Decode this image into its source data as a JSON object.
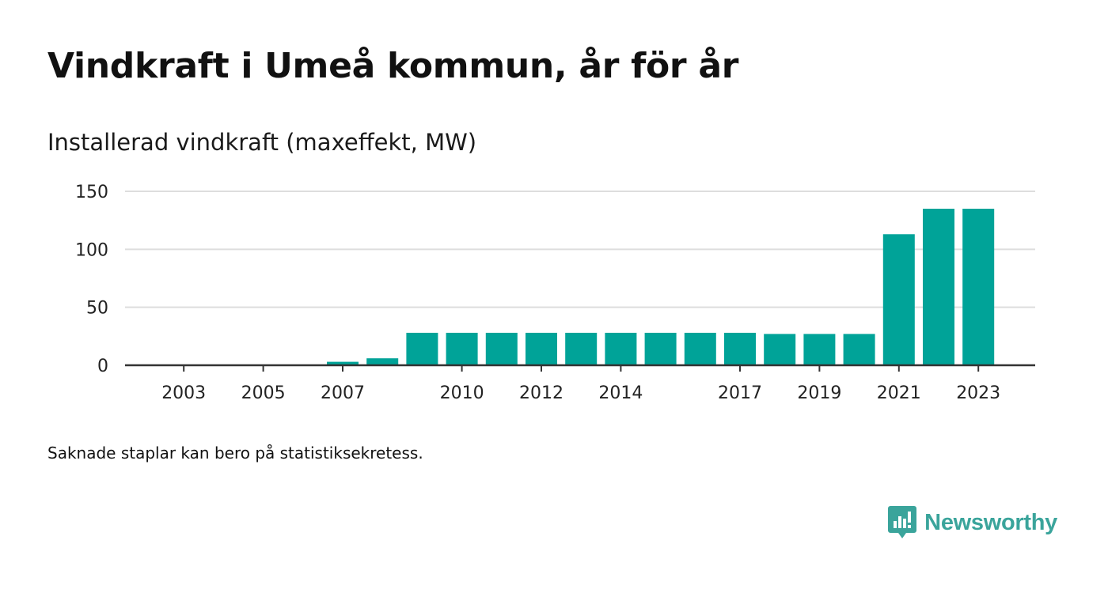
{
  "title": "Vindkraft i Umeå kommun, år för år",
  "subtitle": "Installerad vindkraft (maxeffekt, MW)",
  "note": "Saknade staplar kan bero på statistiksekretess.",
  "brand": {
    "name": "Newsworthy",
    "color": "#3aa49b",
    "icon": "newsworthy-logo-icon"
  },
  "colors": {
    "bar": "#00a398",
    "grid": "#dddddd",
    "axis": "#333333"
  },
  "chart_data": {
    "type": "bar",
    "title": "Vindkraft i Umeå kommun, år för år",
    "ylabel": "Installerad vindkraft (maxeffekt, MW)",
    "xlabel": "",
    "x": [
      2002,
      2003,
      2004,
      2005,
      2006,
      2007,
      2008,
      2009,
      2010,
      2011,
      2012,
      2013,
      2014,
      2015,
      2016,
      2017,
      2018,
      2019,
      2020,
      2021,
      2022,
      2023
    ],
    "values": [
      null,
      null,
      null,
      null,
      null,
      3,
      6,
      28,
      28,
      28,
      28,
      28,
      28,
      28,
      28,
      28,
      27,
      27,
      27,
      113,
      135,
      135
    ],
    "x_tick_labels": [
      "2003",
      "2005",
      "2007",
      "2010",
      "2012",
      "2014",
      "2017",
      "2019",
      "2021",
      "2023"
    ],
    "y_ticks": [
      0,
      50,
      100,
      150
    ],
    "ylim": [
      0,
      150
    ],
    "grid": true,
    "legend": "none"
  }
}
